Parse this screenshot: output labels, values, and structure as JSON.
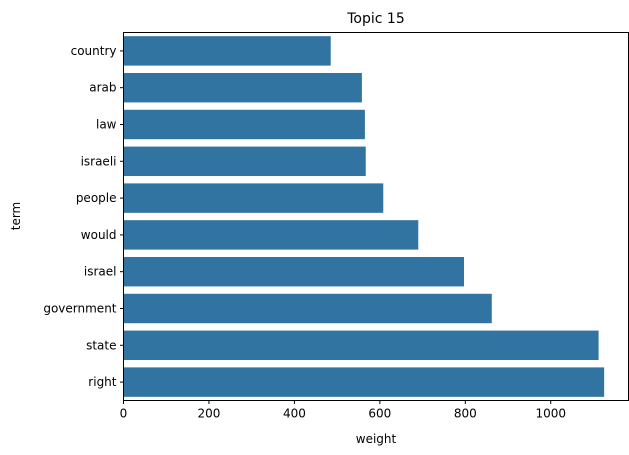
{
  "chart_data": {
    "type": "bar",
    "orientation": "horizontal",
    "title": "Topic 15",
    "xlabel": "weight",
    "ylabel": "term",
    "categories": [
      "country",
      "arab",
      "law",
      "israeli",
      "people",
      "would",
      "israel",
      "government",
      "state",
      "right"
    ],
    "values": [
      485,
      558,
      565,
      567,
      608,
      690,
      797,
      862,
      1112,
      1125
    ],
    "xlim": [
      0,
      1182
    ],
    "xticks": [
      0,
      200,
      400,
      600,
      800,
      1000
    ],
    "grid": false,
    "bar_color": "#3274a1"
  }
}
